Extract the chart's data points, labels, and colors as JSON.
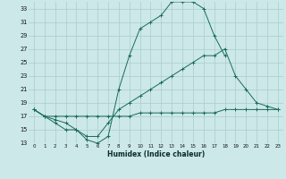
{
  "xlabel": "Humidex (Indice chaleur)",
  "xlim": [
    -0.5,
    23.5
  ],
  "ylim": [
    13,
    34
  ],
  "xticks": [
    0,
    1,
    2,
    3,
    4,
    5,
    6,
    7,
    8,
    9,
    10,
    11,
    12,
    13,
    14,
    15,
    16,
    17,
    18,
    19,
    20,
    21,
    22,
    23
  ],
  "yticks": [
    13,
    15,
    17,
    19,
    21,
    23,
    25,
    27,
    29,
    31,
    33
  ],
  "bg_color": "#cce8e8",
  "grid_color": "#aacccc",
  "line_color": "#1a6b5a",
  "lines": [
    {
      "x": [
        0,
        1,
        2,
        3,
        4,
        5,
        6,
        7,
        8,
        9,
        10,
        11,
        12,
        13,
        14,
        15,
        16,
        17,
        18
      ],
      "y": [
        18,
        17,
        16,
        15,
        15,
        13.5,
        13,
        14,
        21,
        26,
        30,
        31,
        32,
        34,
        34,
        34,
        33,
        29,
        26
      ]
    },
    {
      "x": [
        0,
        1,
        2,
        3,
        4,
        5,
        6,
        7,
        8,
        9,
        10,
        11,
        12,
        13,
        14,
        15,
        16,
        17,
        18,
        19,
        20,
        21,
        22,
        23
      ],
      "y": [
        18,
        17,
        16.5,
        16,
        15,
        14,
        14,
        16,
        18,
        19,
        20,
        21,
        22,
        23,
        24,
        25,
        26,
        26,
        27,
        23,
        21,
        19,
        18.5,
        18
      ]
    },
    {
      "x": [
        0,
        1,
        2,
        3,
        4,
        5,
        6,
        7,
        8,
        9,
        10,
        11,
        12,
        13,
        14,
        15,
        16,
        17,
        18,
        19,
        20,
        21,
        22,
        23
      ],
      "y": [
        18,
        17,
        17,
        17,
        17,
        17,
        17,
        17,
        17,
        17,
        17.5,
        17.5,
        17.5,
        17.5,
        17.5,
        17.5,
        17.5,
        17.5,
        18,
        18,
        18,
        18,
        18,
        18
      ]
    }
  ]
}
